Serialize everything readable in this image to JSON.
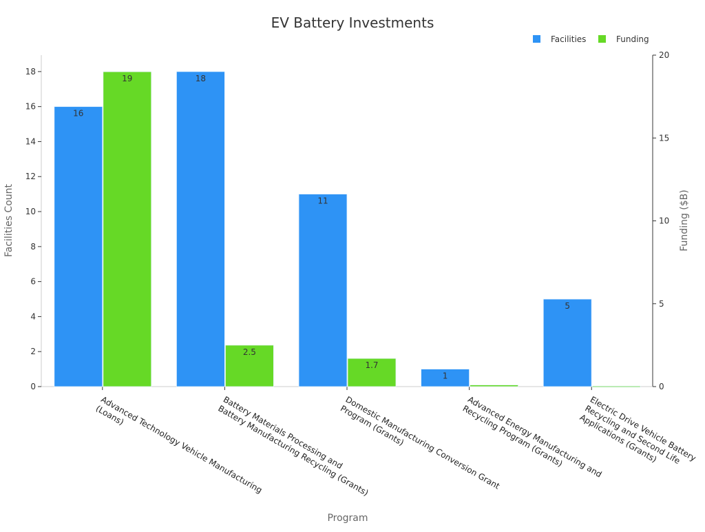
{
  "chart_data": {
    "type": "bar",
    "title": "EV Battery Investments",
    "xlabel": "Program",
    "ylabel": "Facilities Count",
    "y2label": "Funding ($B)",
    "categories": [
      [
        "Advanced Technology Vehicle Manufacturing",
        "(Loans)"
      ],
      [
        "Battery Materials Processing and",
        "Battery Manufacturing Recycling (Grants)"
      ],
      [
        "Domestic Manufacturing Conversion Grant",
        "Program (Grants)"
      ],
      [
        "Advanced Energy Manufacturing and",
        "Recycling Program (Grants)"
      ],
      [
        "Electric Drive Vehicle Battery",
        "Recycling and Second Life",
        "Applications (Grants)"
      ]
    ],
    "series": [
      {
        "name": "Facilities",
        "axis": "left",
        "color": "#2e93f5",
        "values": [
          16,
          18,
          11,
          1,
          5
        ],
        "labels": [
          "16",
          "18",
          "11",
          "1",
          "5"
        ]
      },
      {
        "name": "Funding",
        "axis": "right",
        "color": "#66d926",
        "values": [
          19,
          2.5,
          1.7,
          0.1,
          0.03
        ],
        "labels": [
          "19",
          "2.5",
          "1.7",
          "",
          ""
        ]
      }
    ],
    "ylim": [
      0,
      18.94
    ],
    "y2lim": [
      0,
      20
    ],
    "yticks": [
      0,
      2,
      4,
      6,
      8,
      10,
      12,
      14,
      16,
      18
    ],
    "y2ticks": [
      0,
      5,
      10,
      15,
      20
    ],
    "grid": false,
    "legend": "top-right"
  }
}
